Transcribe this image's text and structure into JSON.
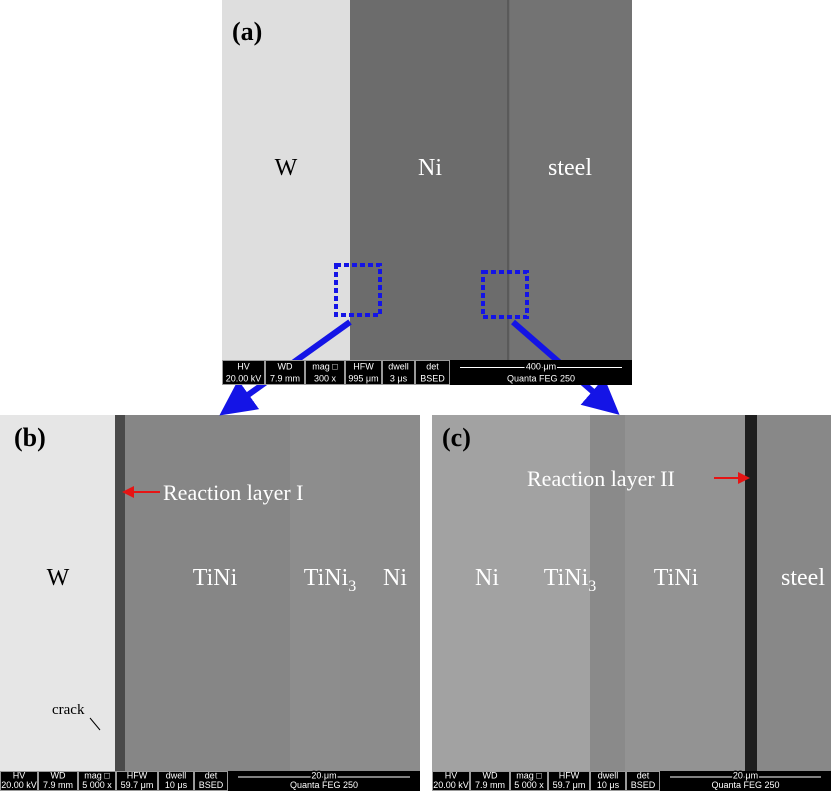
{
  "panels": [
    {
      "label": "(a)",
      "regions": [
        "W",
        "Ni",
        "steel"
      ],
      "info_bar": {
        "headers": [
          "HV",
          "WD",
          "mag □",
          "HFW",
          "dwell",
          "det"
        ],
        "values": [
          "20.00 kV",
          "7.9 mm",
          "300 x",
          "995 μm",
          "3 μs",
          "BSED"
        ],
        "scale": "400 μm",
        "instrument": "Quanta FEG 250"
      }
    },
    {
      "label": "(b)",
      "regions": [
        "W",
        "TiNi",
        {
          "text": "TiNi",
          "subscript": "3"
        },
        "Ni"
      ],
      "annotations": [
        "Reaction layer I",
        "crack"
      ],
      "info_bar": {
        "headers": [
          "HV",
          "WD",
          "mag □",
          "HFW",
          "dwell",
          "det"
        ],
        "values": [
          "20.00 kV",
          "7.9 mm",
          "5 000 x",
          "59.7 μm",
          "10 μs",
          "BSED"
        ],
        "scale": "20 μm",
        "instrument": "Quanta FEG 250"
      }
    },
    {
      "label": "(c)",
      "regions": [
        "Ni",
        {
          "text": "TiNi",
          "subscript": "3"
        },
        "TiNi",
        "steel"
      ],
      "annotations": [
        "Reaction layer II"
      ],
      "info_bar": {
        "headers": [
          "HV",
          "WD",
          "mag □",
          "HFW",
          "dwell",
          "det"
        ],
        "values": [
          "20.00 kV",
          "7.9 mm",
          "5 000 x",
          "59.7 μm",
          "10 μs",
          "BSED"
        ],
        "scale": "20 μm",
        "instrument": "Quanta FEG 250"
      }
    }
  ]
}
